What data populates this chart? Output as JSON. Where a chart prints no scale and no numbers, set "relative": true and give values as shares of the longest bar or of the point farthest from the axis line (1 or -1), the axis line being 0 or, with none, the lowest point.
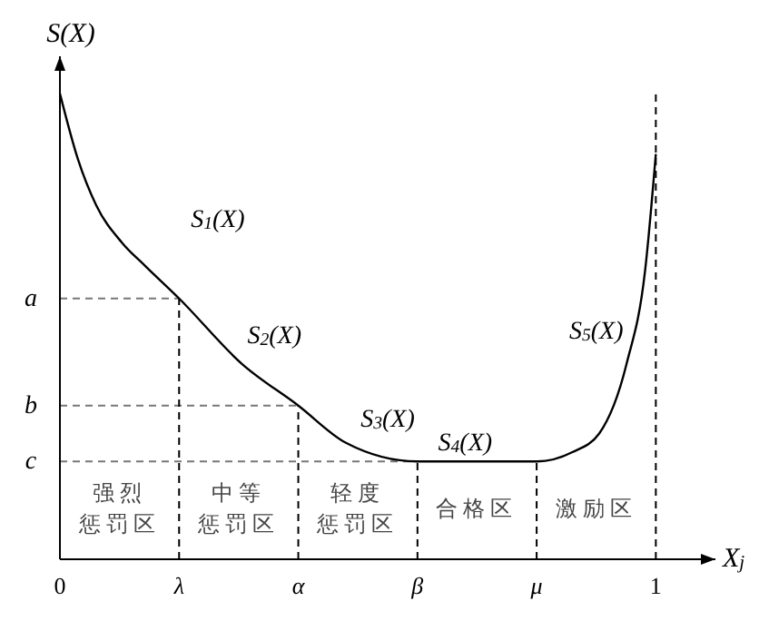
{
  "chart_data": {
    "type": "line",
    "relative": true,
    "ylabel": "S(X)",
    "xlabel": "X$_{j}$",
    "x": [
      0,
      0.03,
      0.061,
      0.104,
      0.143,
      0.2,
      0.305,
      0.4,
      0.48,
      0.6,
      0.8,
      0.86,
      0.905,
      0.951,
      0.982,
      1
    ],
    "series": [
      {
        "color": "#000000",
        "values": [
          1.0,
          0.86,
          0.76,
          0.68,
          0.63,
          0.56,
          0.42,
          0.33,
          0.25,
          0.21,
          0.21,
          0.23,
          0.27,
          0.42,
          0.62,
          0.87
        ]
      }
    ],
    "xlim": [
      0,
      1.1
    ],
    "xticks": [
      0,
      {
        "value": 0.2,
        "label": "λ"
      },
      {
        "value": 0.4,
        "label": "α"
      },
      {
        "value": 0.6,
        "label": "β"
      },
      {
        "value": 0.8,
        "label": "μ"
      },
      1
    ],
    "ref_lines": [
      {
        "axis": "y",
        "value": 0.56,
        "label": "a",
        "line_style": "dashed",
        "color": "#777777"
      },
      {
        "axis": "y",
        "value": 0.33,
        "label": "b",
        "line_style": "dashed",
        "color": "#777777"
      },
      {
        "axis": "y",
        "value": 0.21,
        "label": "c",
        "line_style": "dashed",
        "color": "#777777"
      },
      {
        "axis": "x",
        "value": 0.2,
        "line_style": "dashed",
        "color": "#000000"
      },
      {
        "axis": "x",
        "value": 0.4,
        "line_style": "dashed",
        "color": "#000000"
      },
      {
        "axis": "x",
        "value": 0.6,
        "line_style": "dashed",
        "color": "#000000"
      },
      {
        "axis": "x",
        "value": 0.8,
        "line_style": "dashed",
        "color": "#000000"
      },
      {
        "axis": "x",
        "value": 1,
        "line_style": "dashed",
        "color": "#000000"
      }
    ],
    "annotations": [
      "S$_{1}$(X)",
      "S$_{2}$(X)",
      "S$_{3}$(X)",
      "S$_{4}$(X)",
      "S$_{5}$(X)",
      "强烈惩罚区",
      "中等惩罚区",
      "轻度惩罚区",
      "合格区",
      "激励区"
    ],
    "grid": false,
    "legend": false,
    "marker": "none",
    "line_style": "solid"
  }
}
